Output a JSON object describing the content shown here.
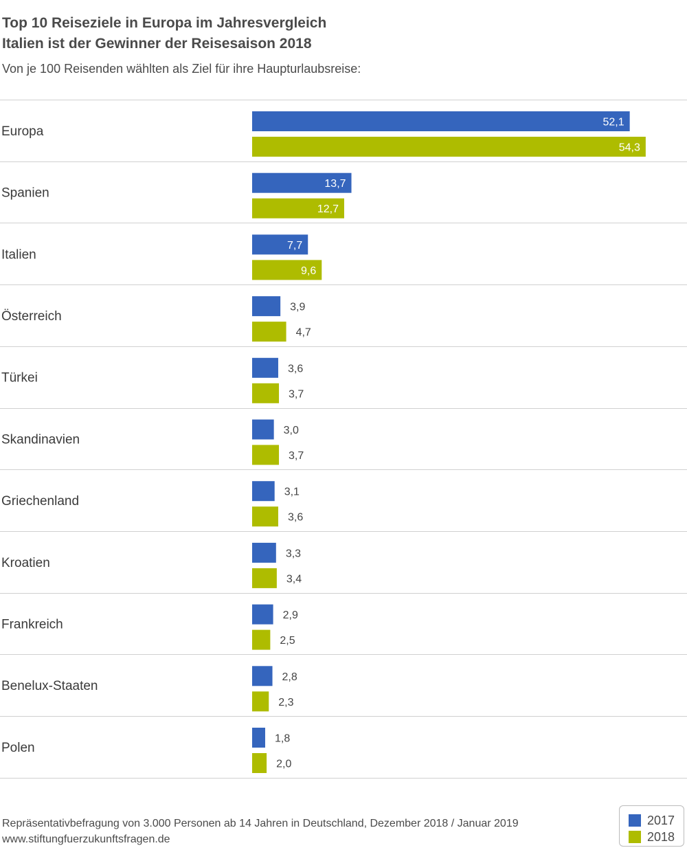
{
  "title_line1": "Top 10 Reiseziele in Europa im Jahresvergleich",
  "title_line2": "Italien ist der Gewinner der Reisesaison 2018",
  "subtitle": "Von je 100 Reisenden wählten als Ziel für ihre Haupturlaubsreise:",
  "footer": {
    "note": "Repräsentativbefragung von 3.000 Personen ab 14 Jahren in Deutschland, Dezember 2018 / Januar 2019",
    "source": "www.stiftungfuerzukunftsfragen.de"
  },
  "colors": {
    "series_2017": "#3565bd",
    "series_2018": "#aebc00",
    "gridline": "#d0d0d0"
  },
  "chart_data": {
    "type": "bar",
    "orientation": "horizontal",
    "categories": [
      "Europa",
      "Spanien",
      "Italien",
      "Österreich",
      "Türkei",
      "Skandinavien",
      "Griechenland",
      "Kroatien",
      "Frankreich",
      "Benelux-Staaten",
      "Polen"
    ],
    "series": [
      {
        "name": "2017",
        "values": [
          52.1,
          13.7,
          7.7,
          3.9,
          3.6,
          3.0,
          3.1,
          3.3,
          2.9,
          2.8,
          1.8
        ],
        "labels": [
          "52,1",
          "13,7",
          "7,7",
          "3,9",
          "3,6",
          "3,0",
          "3,1",
          "3,3",
          "2,9",
          "2,8",
          "1,8"
        ]
      },
      {
        "name": "2018",
        "values": [
          54.3,
          12.7,
          9.6,
          4.7,
          3.7,
          3.7,
          3.6,
          3.4,
          2.5,
          2.3,
          2.0
        ],
        "labels": [
          "54,3",
          "12,7",
          "9,6",
          "4,7",
          "3,7",
          "3,7",
          "3,6",
          "3,4",
          "2,5",
          "2,3",
          "2,0"
        ]
      }
    ],
    "legend": "bottom-right",
    "grid": false
  }
}
